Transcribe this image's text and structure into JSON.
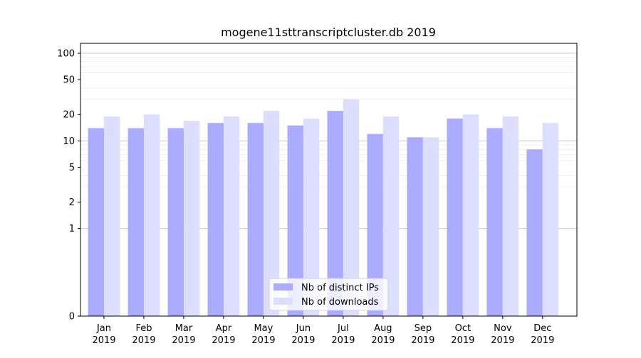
{
  "chart_data": {
    "type": "bar",
    "title": "mogene11sttranscriptcluster.db 2019",
    "xlabel": "",
    "ylabel": "",
    "y_scale": "symlog",
    "ylim": [
      0,
      130
    ],
    "y_ticks": [
      0,
      1,
      2,
      5,
      10,
      20,
      50,
      100
    ],
    "grid": true,
    "legend_position": "bottom-center",
    "categories": [
      [
        "Jan",
        "2019"
      ],
      [
        "Feb",
        "2019"
      ],
      [
        "Mar",
        "2019"
      ],
      [
        "Apr",
        "2019"
      ],
      [
        "May",
        "2019"
      ],
      [
        "Jun",
        "2019"
      ],
      [
        "Jul",
        "2019"
      ],
      [
        "Aug",
        "2019"
      ],
      [
        "Sep",
        "2019"
      ],
      [
        "Oct",
        "2019"
      ],
      [
        "Nov",
        "2019"
      ],
      [
        "Dec",
        "2019"
      ]
    ],
    "series": [
      {
        "name": "Nb of distinct IPs",
        "color": "#aaaaff",
        "values": [
          14,
          14,
          14,
          16,
          16,
          15,
          22,
          12,
          11,
          18,
          14,
          8
        ]
      },
      {
        "name": "Nb of downloads",
        "color": "#ddddff",
        "values": [
          19,
          20,
          17,
          19,
          22,
          18,
          30,
          19,
          11,
          20,
          19,
          16
        ]
      }
    ]
  }
}
